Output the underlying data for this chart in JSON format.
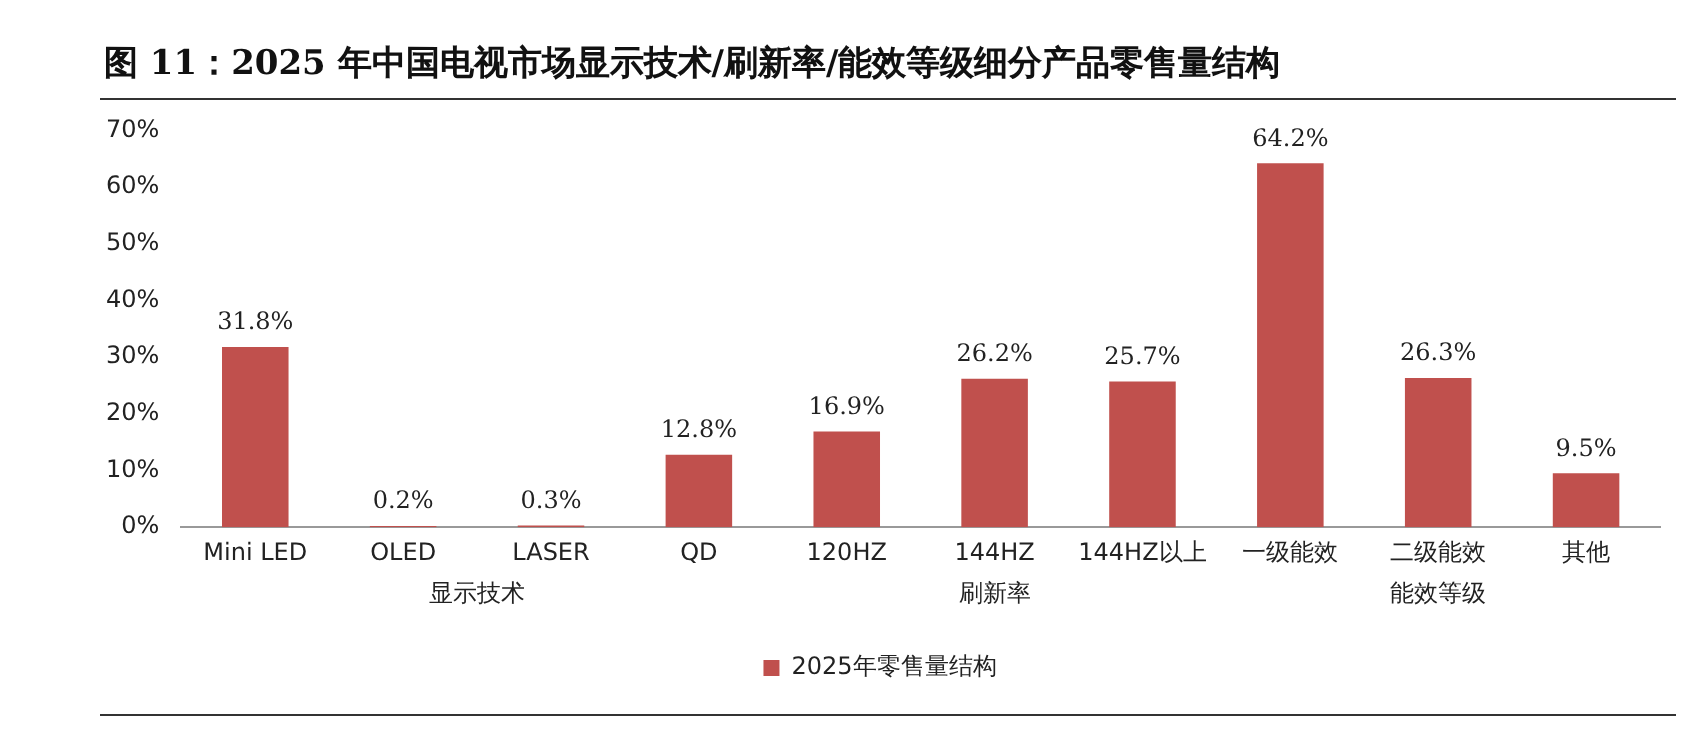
{
  "chart_data": {
    "type": "bar",
    "title": "图 11：2025 年中国电视市场显示技术/刷新率/能效等级细分产品零售量结构",
    "categories": [
      "Mini LED",
      "OLED",
      "LASER",
      "QD",
      "120HZ",
      "144HZ",
      "144HZ以上",
      "一级能效",
      "二级能效",
      "其他"
    ],
    "series": [
      {
        "name": "2025年零售量结构",
        "color": "#c0504d",
        "values": [
          31.8,
          0.2,
          0.3,
          12.8,
          16.9,
          26.2,
          25.7,
          64.2,
          26.3,
          9.5
        ],
        "value_labels": [
          "31.8%",
          "0.2%",
          "0.3%",
          "12.8%",
          "16.9%",
          "26.2%",
          "25.7%",
          "64.2%",
          "26.3%",
          "9.5%"
        ]
      }
    ],
    "ylim": [
      0,
      70
    ],
    "yticks": [
      {
        "value": 0,
        "label": "0%"
      },
      {
        "value": 10,
        "label": "10%"
      },
      {
        "value": 20,
        "label": "20%"
      },
      {
        "value": 30,
        "label": "30%"
      },
      {
        "value": 40,
        "label": "40%"
      },
      {
        "value": 50,
        "label": "50%"
      },
      {
        "value": 60,
        "label": "60%"
      },
      {
        "value": 70,
        "label": "70%"
      }
    ],
    "grid": false,
    "legend": "bottom",
    "annotations": [
      "显示技术",
      "刷新率",
      "能效等级"
    ]
  }
}
